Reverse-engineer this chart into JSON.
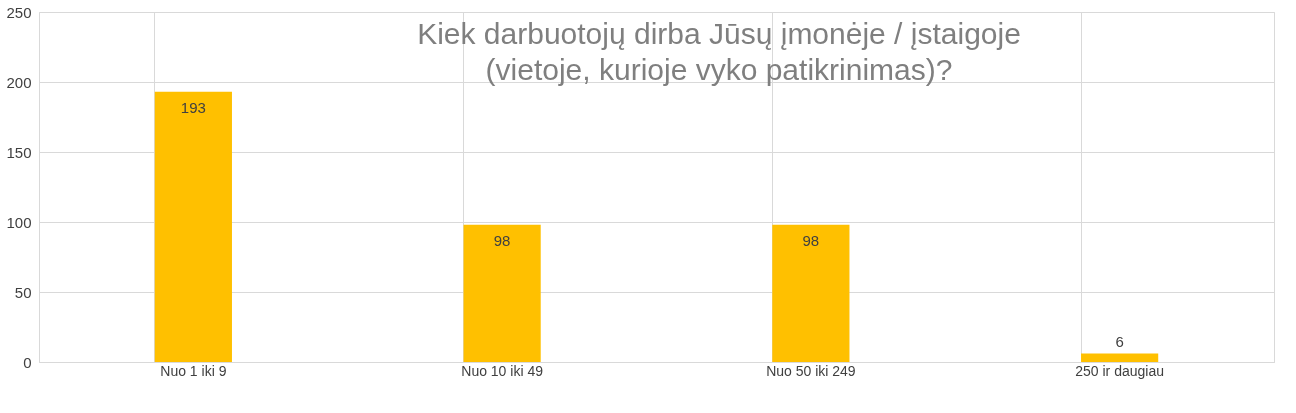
{
  "chart_data": {
    "type": "bar",
    "title": "Kiek darbuotojų dirba Jūsų įmonėje / įstaigoje (vietoje, kurioje vyko patikrinimas)?",
    "categories": [
      "Nuo 1 iki 9",
      "Nuo 10 iki 49",
      "Nuo 50 iki 249",
      "250 ir daugiau"
    ],
    "values": [
      193,
      98,
      98,
      6
    ],
    "color": "#ffc000",
    "ylim": [
      0,
      250
    ],
    "yticks": [
      0,
      50,
      100,
      150,
      200,
      250
    ],
    "grid": true,
    "data_labels": true
  }
}
